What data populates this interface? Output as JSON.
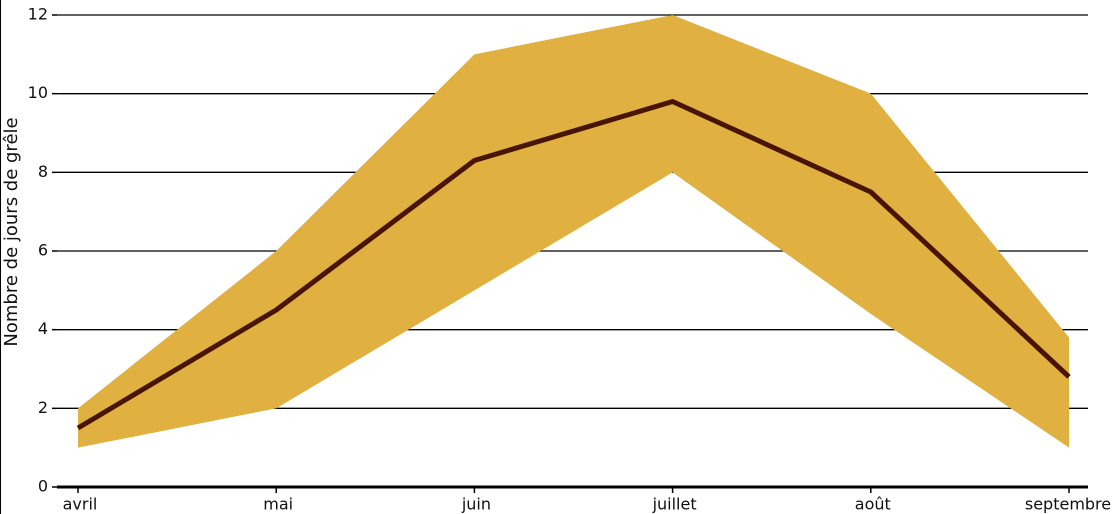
{
  "chart_data": {
    "type": "line",
    "y_label": "Nombre de jours de grêle",
    "categories": [
      "avril",
      "mai",
      "juin",
      "juillet",
      "août",
      "septembre"
    ],
    "series": [
      {
        "color": "#4a1405",
        "values": [
          1.5,
          4.5,
          8.3,
          9.8,
          7.5,
          2.8
        ]
      }
    ],
    "band": {
      "color": "#e0b040",
      "upper": [
        2,
        6,
        11,
        12,
        10,
        3.8
      ],
      "lower": [
        1,
        2,
        5,
        8,
        4.4,
        1
      ]
    },
    "ylim": [
      0,
      12
    ],
    "yticks": [
      0,
      2,
      4,
      6,
      8,
      10,
      12
    ],
    "grid": true
  }
}
